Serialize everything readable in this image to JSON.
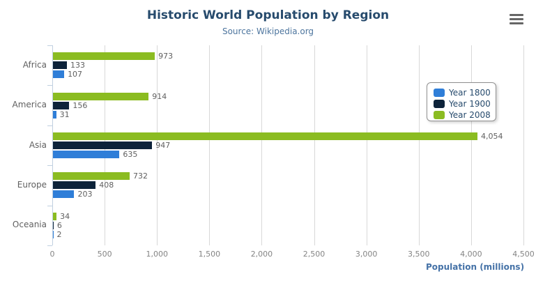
{
  "header": {
    "title": "Historic World Population by Region",
    "subtitle": "Source: Wikipedia.org",
    "menu_icon": "hamburger-menu-icon"
  },
  "chart_data": {
    "type": "bar",
    "orientation": "horizontal",
    "title": "Historic World Population by Region",
    "subtitle": "Source: Wikipedia.org",
    "categories": [
      "Africa",
      "America",
      "Asia",
      "Europe",
      "Oceania"
    ],
    "series": [
      {
        "name": "Year 1800",
        "color": "#2f7ed8",
        "values": [
          107,
          31,
          635,
          203,
          2
        ]
      },
      {
        "name": "Year 1900",
        "color": "#0d233a",
        "values": [
          133,
          156,
          947,
          408,
          6
        ]
      },
      {
        "name": "Year 2008",
        "color": "#8bbc21",
        "values": [
          973,
          914,
          4054,
          732,
          34
        ]
      }
    ],
    "visual_order_top_to_bottom": [
      "Year 2008",
      "Year 1900",
      "Year 1800"
    ],
    "data_labels_visible": true,
    "xlabel": "Population (millions)",
    "ylabel": "",
    "xlim": [
      0,
      4500
    ],
    "xticks": [
      0,
      500,
      1000,
      1500,
      2000,
      2500,
      3000,
      3500,
      4000,
      4500
    ],
    "grid": true,
    "legend_position": "right-middle-overlay",
    "legend_entries": [
      "Year 1800",
      "Year 1900",
      "Year 2008"
    ]
  },
  "colors": {
    "series_blue": "#2f7ed8",
    "series_navy": "#0d233a",
    "series_green": "#8bbc21",
    "title_text": "#274b6d",
    "subtitle_text": "#4d759e",
    "axis_title_text": "#4572a7",
    "label_gray": "#606060",
    "gridline": "#d8d8d8",
    "category_axis_line": "#c0d0e0",
    "legend_border": "#909090",
    "menu_icon_gray": "#666666"
  }
}
